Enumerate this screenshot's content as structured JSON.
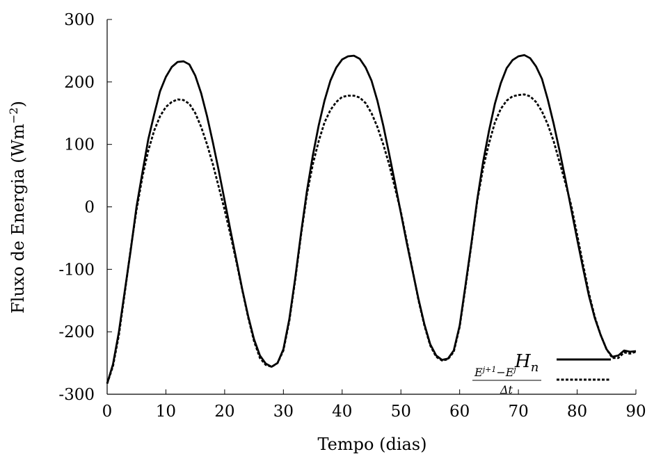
{
  "chart_data": {
    "type": "line",
    "title": "",
    "xlabel": "Tempo (dias)",
    "ylabel": "Fluxo de Energia (Wm",
    "ylabel_sup": "−2",
    "ylabel_close": ")",
    "xlim": [
      0,
      90
    ],
    "ylim": [
      -300,
      300
    ],
    "xticks": [
      0,
      10,
      20,
      30,
      40,
      50,
      60,
      70,
      80,
      90
    ],
    "yticks": [
      -300,
      -200,
      -100,
      0,
      100,
      200,
      300
    ],
    "xtick_labels": [
      "0",
      "10",
      "20",
      "30",
      "40",
      "50",
      "60",
      "70",
      "80",
      "90"
    ],
    "ytick_labels": [
      "-300",
      "-200",
      "-100",
      "0",
      "100",
      "200",
      "300"
    ],
    "grid": false,
    "legend_position": "bottom-right",
    "series": [
      {
        "name": "H_n",
        "legend_label": "H",
        "legend_sub": "n",
        "style": "solid",
        "x": [
          0,
          1,
          2,
          3,
          4,
          5,
          6,
          7,
          8,
          9,
          10,
          11,
          12,
          13,
          14,
          15,
          16,
          17,
          18,
          19,
          20,
          21,
          22,
          23,
          24,
          25,
          26,
          27,
          28,
          29,
          30,
          31,
          32,
          33,
          34,
          35,
          36,
          37,
          38,
          39,
          40,
          41,
          42,
          43,
          44,
          45,
          46,
          47,
          48,
          49,
          50,
          51,
          52,
          53,
          54,
          55,
          56,
          57,
          58,
          59,
          60,
          61,
          62,
          63,
          64,
          65,
          66,
          67,
          68,
          69,
          70,
          71,
          72,
          73,
          74,
          75,
          76,
          77,
          78,
          79,
          80,
          81,
          82,
          83,
          84,
          85,
          86,
          87,
          88,
          89,
          90
        ],
        "y": [
          -283,
          -252,
          -200,
          -135,
          -70,
          0,
          55,
          108,
          148,
          185,
          208,
          224,
          232,
          233,
          228,
          210,
          182,
          145,
          103,
          58,
          10,
          -38,
          -85,
          -132,
          -175,
          -212,
          -238,
          -251,
          -256,
          -250,
          -228,
          -180,
          -115,
          -42,
          25,
          82,
          130,
          170,
          202,
          223,
          236,
          241,
          242,
          237,
          223,
          202,
          170,
          130,
          85,
          38,
          -10,
          -58,
          -103,
          -148,
          -188,
          -220,
          -238,
          -245,
          -243,
          -230,
          -190,
          -125,
          -58,
          12,
          72,
          122,
          165,
          198,
          222,
          235,
          241,
          243,
          238,
          225,
          205,
          172,
          133,
          90,
          44,
          -4,
          -52,
          -98,
          -142,
          -178,
          -205,
          -228,
          -240,
          -238,
          -230,
          -232,
          -231
        ]
      },
      {
        "name": "(E^{j+1} − E^j)/Δt",
        "legend_label": "(E^(j+1) − E^j)/Δt",
        "legend_numerator": "E",
        "legend_num_sup1": "j+1",
        "legend_num_mid": "−E",
        "legend_num_sup2": "j",
        "legend_denominator": "Δt",
        "style": "dashed",
        "x": [
          0,
          1,
          2,
          3,
          4,
          5,
          6,
          7,
          8,
          9,
          10,
          11,
          12,
          13,
          14,
          15,
          16,
          17,
          18,
          19,
          20,
          21,
          22,
          23,
          24,
          25,
          26,
          27,
          28,
          29,
          30,
          31,
          32,
          33,
          34,
          35,
          36,
          37,
          38,
          39,
          40,
          41,
          42,
          43,
          44,
          45,
          46,
          47,
          48,
          49,
          50,
          51,
          52,
          53,
          54,
          55,
          56,
          57,
          58,
          59,
          60,
          61,
          62,
          63,
          64,
          65,
          66,
          67,
          68,
          69,
          70,
          71,
          72,
          73,
          74,
          75,
          76,
          77,
          78,
          79,
          80,
          81,
          82,
          83,
          84,
          85,
          86,
          87,
          88,
          89,
          90
        ],
        "y": [
          -283,
          -255,
          -205,
          -138,
          -68,
          -5,
          48,
          90,
          122,
          145,
          160,
          168,
          172,
          171,
          165,
          150,
          128,
          100,
          68,
          32,
          -5,
          -45,
          -88,
          -133,
          -177,
          -215,
          -242,
          -253,
          -256,
          -250,
          -230,
          -183,
          -118,
          -45,
          20,
          68,
          105,
          135,
          155,
          168,
          176,
          178,
          178,
          175,
          166,
          150,
          128,
          100,
          68,
          30,
          -8,
          -55,
          -102,
          -150,
          -190,
          -222,
          -240,
          -246,
          -244,
          -232,
          -192,
          -128,
          -60,
          10,
          62,
          102,
          135,
          157,
          170,
          177,
          179,
          180,
          177,
          168,
          153,
          132,
          105,
          72,
          38,
          2,
          -45,
          -92,
          -138,
          -176,
          -205,
          -228,
          -242,
          -242,
          -233,
          -235,
          -232
        ]
      }
    ]
  }
}
